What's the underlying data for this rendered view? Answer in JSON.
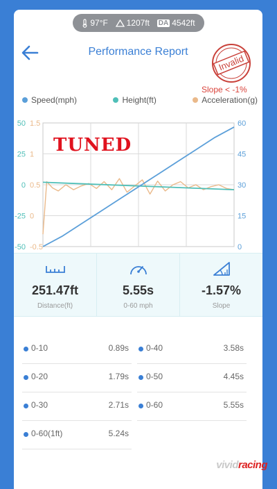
{
  "env": {
    "temp": "97°F",
    "altitude": "1207ft",
    "da_label": "DA",
    "da_value": "4542ft"
  },
  "header": {
    "title": "Performance Report"
  },
  "stamp": {
    "text": "Invalid",
    "note": "Slope < -1%"
  },
  "legend": [
    {
      "label": "Speed(mph)",
      "color": "#5b9fd9"
    },
    {
      "label": "Height(ft)",
      "color": "#4fbfb8"
    },
    {
      "label": "Acceleration(g)",
      "color": "#eab98a"
    }
  ],
  "overlay_text": "TUNED",
  "chart_data": {
    "type": "line",
    "left_axis_height": {
      "ticks": [
        "50",
        "25",
        "0",
        "-25",
        "-50"
      ],
      "color": "#4fbfb8"
    },
    "left_axis_accel": {
      "ticks": [
        "1.5",
        "1",
        "0.5",
        "0",
        "-0.5"
      ],
      "color": "#eab98a"
    },
    "right_axis_speed": {
      "ticks": [
        "60",
        "45",
        "30",
        "15",
        "0"
      ],
      "color": "#5b9fd9"
    },
    "speed": {
      "x": [
        0,
        0.1,
        0.2,
        0.3,
        0.4,
        0.5,
        0.6,
        0.7,
        0.8,
        0.9,
        1.0
      ],
      "values": [
        0,
        5,
        11,
        17,
        23,
        29,
        35,
        41,
        47,
        53,
        58
      ]
    },
    "height": {
      "x": [
        0,
        1
      ],
      "values": [
        2,
        -4
      ]
    },
    "acceleration": {
      "x": [
        0,
        0.02,
        0.05,
        0.08,
        0.12,
        0.16,
        0.2,
        0.24,
        0.28,
        0.32,
        0.36,
        0.4,
        0.44,
        0.48,
        0.52,
        0.56,
        0.6,
        0.64,
        0.68,
        0.72,
        0.76,
        0.8,
        0.84,
        0.88,
        0.92,
        0.96,
        1.0
      ],
      "values": [
        -0.3,
        0.55,
        0.45,
        0.4,
        0.5,
        0.42,
        0.48,
        0.52,
        0.44,
        0.55,
        0.42,
        0.6,
        0.38,
        0.48,
        0.58,
        0.35,
        0.56,
        0.4,
        0.5,
        0.55,
        0.45,
        0.5,
        0.42,
        0.47,
        0.5,
        0.44,
        0.42
      ]
    }
  },
  "metrics": [
    {
      "value": "251.47ft",
      "label": "Distance(ft)",
      "icon": "ruler-icon"
    },
    {
      "value": "5.55s",
      "label": "0-60 mph",
      "icon": "speedometer-icon"
    },
    {
      "value": "-1.57%",
      "label": "Slope",
      "icon": "slope-icon"
    }
  ],
  "splits": [
    {
      "label": "0-10",
      "value": "0.89s"
    },
    {
      "label": "0-40",
      "value": "3.58s"
    },
    {
      "label": "0-20",
      "value": "1.79s"
    },
    {
      "label": "0-50",
      "value": "4.45s"
    },
    {
      "label": "0-30",
      "value": "2.71s"
    },
    {
      "label": "0-60",
      "value": "5.55s"
    },
    {
      "label": "0-60(1ft)",
      "value": "5.24s"
    }
  ],
  "watermark": {
    "part1": "vivid",
    "part2": "racing"
  }
}
